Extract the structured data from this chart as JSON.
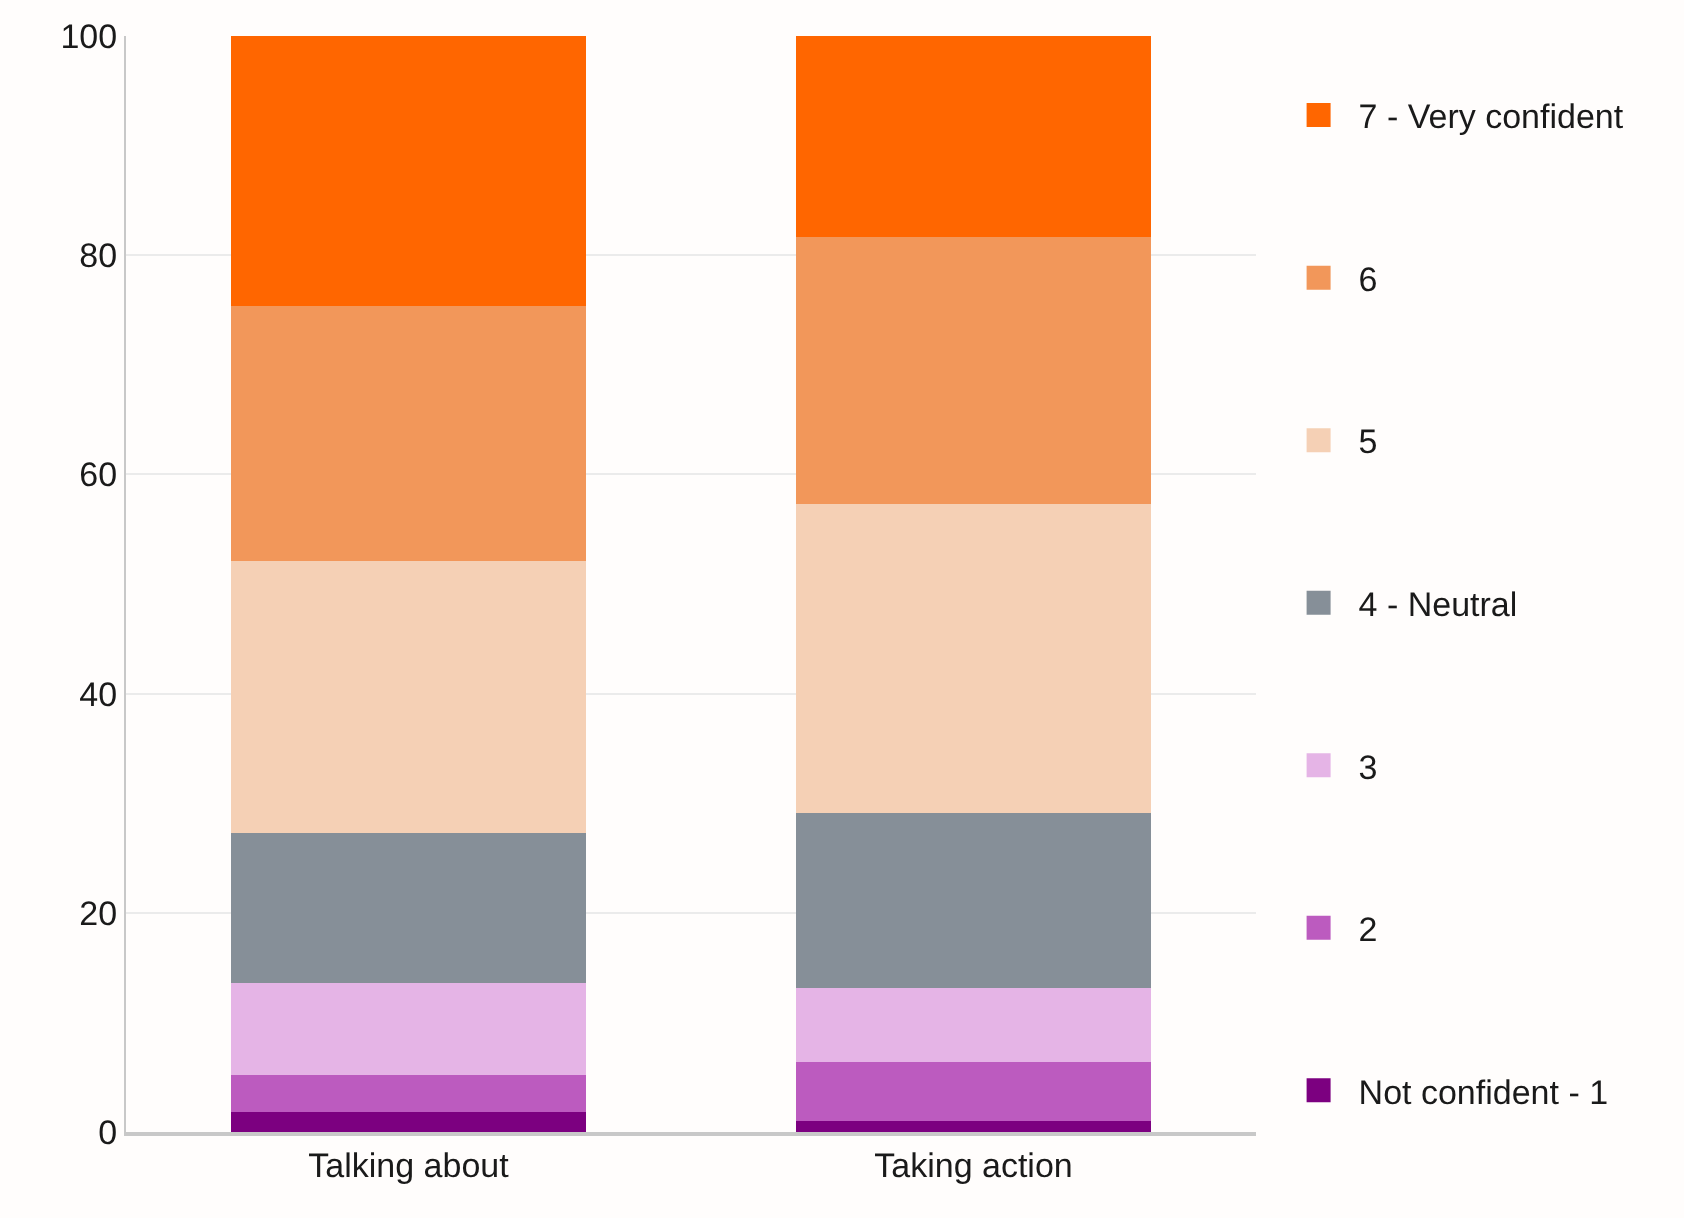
{
  "chart_data": {
    "type": "bar",
    "stacked": true,
    "categories": [
      "Talking about",
      "Taking action"
    ],
    "series": [
      {
        "name": "Not confident - 1",
        "color": "#7c0080",
        "values": [
          1.8,
          1.0
        ]
      },
      {
        "name": "2",
        "color": "#bc5bbf",
        "values": [
          3.4,
          5.4
        ]
      },
      {
        "name": "3",
        "color": "#e5b4e6",
        "values": [
          8.4,
          6.7
        ]
      },
      {
        "name": "4 - Neutral",
        "color": "#868f98",
        "values": [
          13.7,
          16.0
        ]
      },
      {
        "name": "5",
        "color": "#f5d0b5",
        "values": [
          24.8,
          28.2
        ]
      },
      {
        "name": "6",
        "color": "#f2975a",
        "values": [
          23.3,
          24.4
        ]
      },
      {
        "name": "7 - Very confident",
        "color": "#ff6600",
        "values": [
          24.6,
          18.3
        ]
      }
    ],
    "ylim": [
      0,
      100
    ],
    "yticks": [
      0,
      20,
      40,
      60,
      80,
      100
    ],
    "grid": "y",
    "legend": "right"
  }
}
